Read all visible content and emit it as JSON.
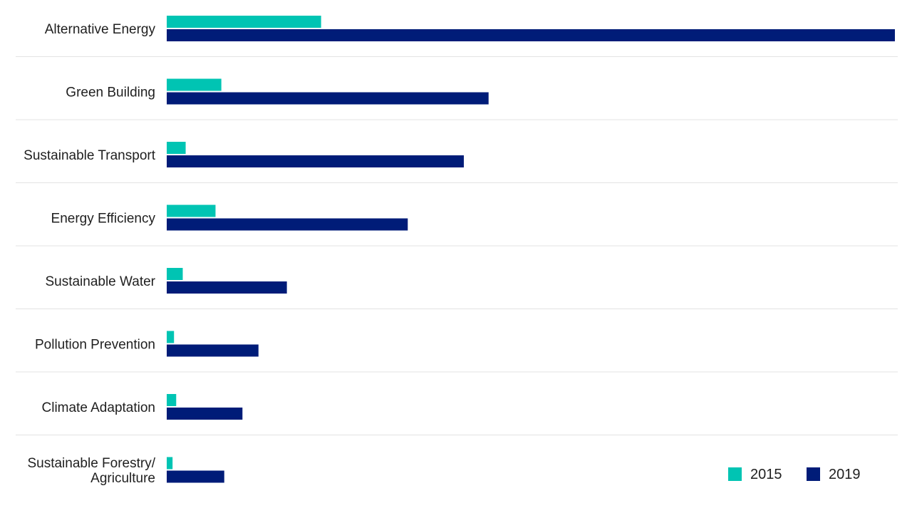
{
  "chart_data": {
    "type": "bar",
    "orientation": "horizontal",
    "categories": [
      "Alternative Energy",
      "Green Building",
      "Sustainable Transport",
      "Energy Efficiency",
      "Sustainable Water",
      "Pollution Prevention",
      "Climate Adaptation",
      "Sustainable Forestry/ Agriculture"
    ],
    "category_lines": [
      [
        "Alternative Energy"
      ],
      [
        "Green Building"
      ],
      [
        "Sustainable Transport"
      ],
      [
        "Energy Efficiency"
      ],
      [
        "Sustainable Water"
      ],
      [
        "Pollution Prevention"
      ],
      [
        "Climate Adaptation"
      ],
      [
        "Sustainable Forestry/",
        "Agriculture"
      ]
    ],
    "series": [
      {
        "name": "2015",
        "color": "#00c4b3",
        "values": [
          21.2,
          7.5,
          2.6,
          6.7,
          2.2,
          1.0,
          1.3,
          0.8
        ]
      },
      {
        "name": "2019",
        "color": "#001c78",
        "values": [
          100,
          44.2,
          40.8,
          33.1,
          16.5,
          12.6,
          10.4,
          7.9
        ]
      }
    ],
    "xlim": [
      0,
      100
    ],
    "title": "",
    "xlabel": "",
    "ylabel": "",
    "grid": false,
    "legend_position": "bottom-right",
    "divider_color": "#e3e3e3"
  }
}
